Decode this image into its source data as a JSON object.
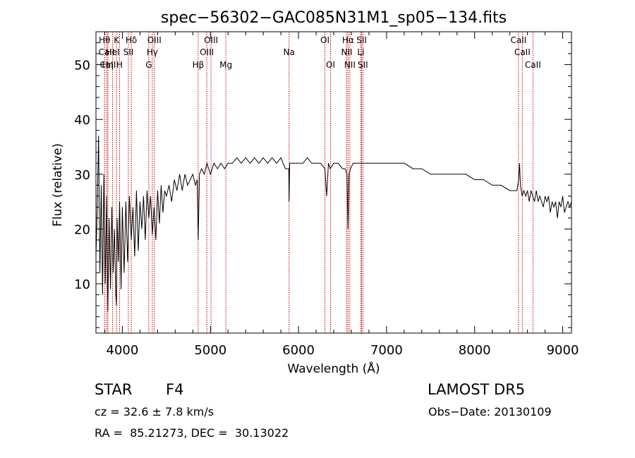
{
  "chart_data": {
    "type": "line",
    "title": "spec−56302−GAC085N31M1_sp05−134.fits",
    "xlabel": "Wavelength (Å)",
    "ylabel": "Flux (relative)",
    "xlim": [
      3700,
      9100
    ],
    "ylim": [
      1,
      56
    ],
    "xticks": [
      "4000",
      "5000",
      "6000",
      "7000",
      "8000",
      "9000"
    ],
    "yticks": [
      "10",
      "20",
      "30",
      "40",
      "50"
    ],
    "line_color": "#000000",
    "marker_color": "#cc0000",
    "series": [
      {
        "x": [
          3700,
          3715,
          3730,
          3745,
          3760,
          3775,
          3790,
          3805,
          3820,
          3835,
          3850,
          3865,
          3880,
          3895,
          3910,
          3925,
          3933,
          3940,
          3955,
          3968,
          3985,
          4000,
          4020,
          4040,
          4060,
          4080,
          4101,
          4120,
          4140,
          4160,
          4180,
          4200,
          4220,
          4240,
          4260,
          4280,
          4300,
          4320,
          4340,
          4360,
          4380,
          4400,
          4420,
          4440,
          4460,
          4480,
          4500,
          4530,
          4560,
          4590,
          4620,
          4650,
          4680,
          4710,
          4740,
          4770,
          4800,
          4830,
          4850,
          4861,
          4875,
          4900,
          4930,
          4960,
          5000,
          5040,
          5080,
          5120,
          5160,
          5200,
          5250,
          5300,
          5350,
          5400,
          5450,
          5500,
          5550,
          5600,
          5650,
          5700,
          5750,
          5800,
          5850,
          5890,
          5893,
          5900,
          5950,
          6000,
          6050,
          6100,
          6150,
          6200,
          6250,
          6300,
          6320,
          6340,
          6360,
          6400,
          6450,
          6500,
          6530,
          6550,
          6563,
          6575,
          6590,
          6620,
          6650,
          6700,
          6750,
          6800,
          6850,
          6900,
          6950,
          7000,
          7100,
          7200,
          7300,
          7400,
          7500,
          7600,
          7700,
          7800,
          7900,
          8000,
          8100,
          8200,
          8300,
          8400,
          8480,
          8500,
          8510,
          8520,
          8540,
          8560,
          8580,
          8600,
          8620,
          8640,
          8660,
          8680,
          8700,
          8720,
          8740,
          8760,
          8780,
          8800,
          8820,
          8840,
          8860,
          8880,
          8900,
          8920,
          8940,
          8960,
          8980,
          9000,
          9020,
          9040,
          9060,
          9080,
          9100
        ],
        "y": [
          15,
          24,
          37,
          12,
          28,
          8,
          30,
          10,
          26,
          5,
          22,
          9,
          24,
          12,
          20,
          8,
          6,
          22,
          14,
          25,
          9,
          24,
          12,
          25,
          14,
          26,
          18,
          24,
          15,
          27,
          16,
          25,
          20,
          26,
          18,
          27,
          22,
          26,
          19,
          24,
          18,
          27,
          21,
          28,
          23,
          27,
          26,
          28,
          25,
          29,
          27,
          30,
          27,
          30,
          28,
          29,
          30,
          28,
          29,
          18,
          30,
          31,
          30,
          32,
          30,
          32,
          31,
          32,
          31,
          32,
          32,
          33,
          32,
          33,
          32,
          33,
          32,
          33,
          32,
          33,
          32,
          33,
          31,
          31,
          25,
          32,
          32,
          32,
          32,
          33,
          32,
          32,
          32,
          31,
          26,
          32,
          31,
          32,
          32,
          31,
          31,
          30,
          20,
          30,
          31,
          32,
          32,
          32,
          32,
          32,
          32,
          32,
          32,
          32,
          32,
          32,
          31,
          31,
          30,
          30,
          30,
          30,
          30,
          29,
          29,
          28,
          28,
          27,
          27,
          29,
          32,
          28,
          26,
          27,
          26,
          27,
          25,
          27,
          26,
          25,
          27,
          25,
          26,
          25,
          24,
          26,
          25,
          26,
          23,
          25,
          24,
          25,
          22,
          25,
          24,
          26,
          23,
          24,
          25,
          24,
          25
        ]
      }
    ],
    "line_markers": [
      {
        "wl": 3798,
        "label": "Hθ",
        "row": 1
      },
      {
        "wl": 3820,
        "label": "CaII",
        "row": 2
      },
      {
        "wl": 3835,
        "label": "CaII",
        "row": 3
      },
      {
        "wl": 3835,
        "label": "Hη",
        "row": 3
      },
      {
        "wl": 3889,
        "label": "HeI",
        "row": 2
      },
      {
        "wl": 3934,
        "label": "K",
        "row": 1
      },
      {
        "wl": 3968,
        "label": "H",
        "row": 3
      },
      {
        "wl": 4068,
        "label": "SII",
        "row": 2
      },
      {
        "wl": 4101,
        "label": "Hδ",
        "row": 1
      },
      {
        "wl": 4300,
        "label": "G",
        "row": 3
      },
      {
        "wl": 4340,
        "label": "Hγ",
        "row": 2
      },
      {
        "wl": 4363,
        "label": "OIII",
        "row": 1
      },
      {
        "wl": 4861,
        "label": "Hβ",
        "row": 3
      },
      {
        "wl": 4959,
        "label": "OIII",
        "row": 2
      },
      {
        "wl": 5007,
        "label": "OIII",
        "row": 1
      },
      {
        "wl": 5175,
        "label": "Mg",
        "row": 3
      },
      {
        "wl": 5893,
        "label": "Na",
        "row": 2
      },
      {
        "wl": 6300,
        "label": "OI",
        "row": 1
      },
      {
        "wl": 6364,
        "label": "OI",
        "row": 3
      },
      {
        "wl": 6548,
        "label": "NII",
        "row": 2
      },
      {
        "wl": 6563,
        "label": "Hα",
        "row": 1
      },
      {
        "wl": 6583,
        "label": "NII",
        "row": 3
      },
      {
        "wl": 6708,
        "label": "Li",
        "row": 2
      },
      {
        "wl": 6717,
        "label": "SII",
        "row": 1
      },
      {
        "wl": 6731,
        "label": "SII",
        "row": 3
      },
      {
        "wl": 8498,
        "label": "CaII",
        "row": 1
      },
      {
        "wl": 8542,
        "label": "CaII",
        "row": 2
      },
      {
        "wl": 8662,
        "label": "CaII",
        "row": 3
      }
    ]
  },
  "info": {
    "object_class": "STAR",
    "subclass": "F4",
    "survey": "LAMOST DR5",
    "redshift": "cz = 32.6 ± 7.8 km/s",
    "obs_date": "Obs−Date: 20130109",
    "coords": "RA =  85.21273, DEC =  30.13022"
  }
}
